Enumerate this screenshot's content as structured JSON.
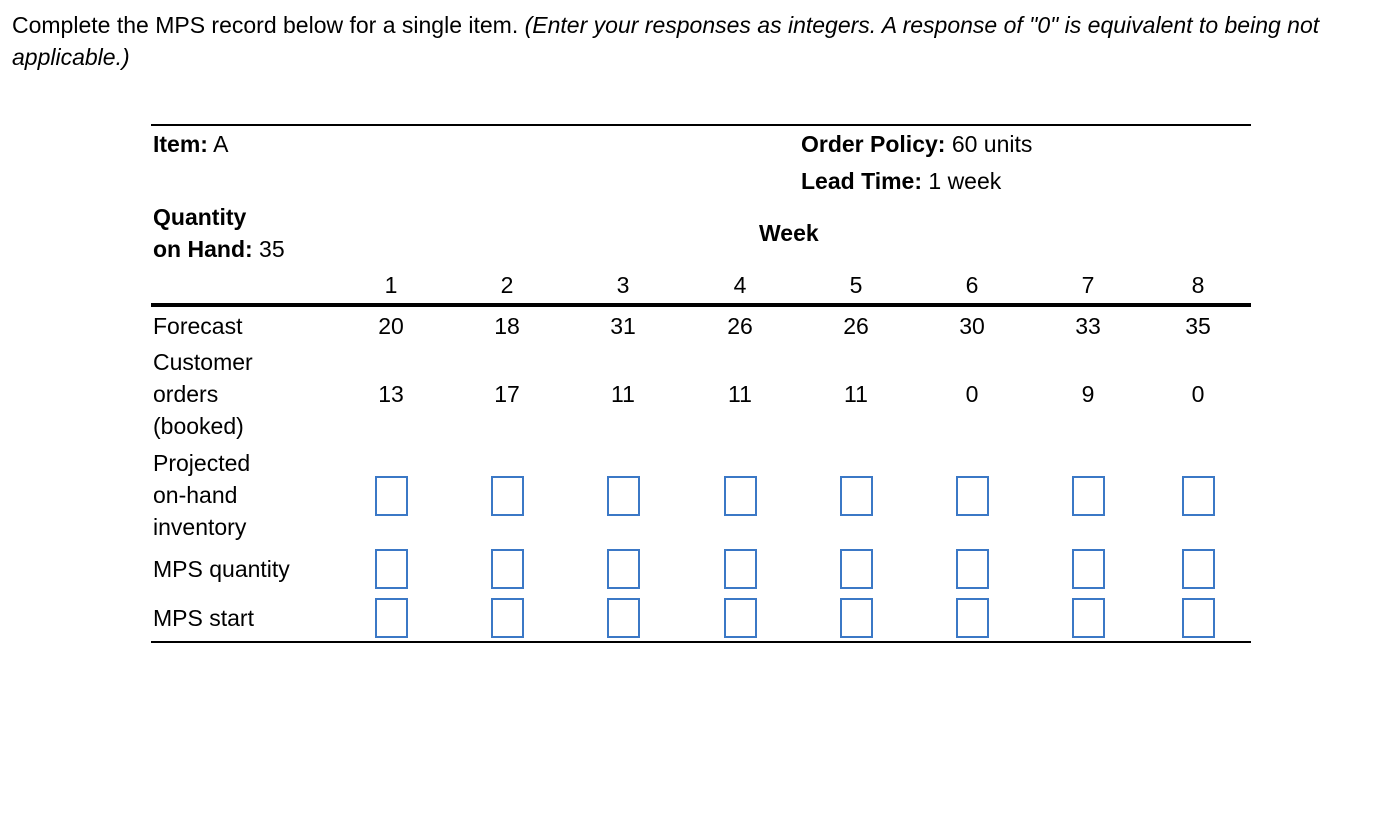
{
  "instructions": {
    "main": "Complete the MPS record below for a single item.",
    "note": "(Enter your responses as integers. A response of \"0\" is equivalent to being not applicable.)"
  },
  "record": {
    "item_label": "Item:",
    "item_value": "A",
    "order_policy_label": "Order Policy:",
    "order_policy_value": "60 units",
    "lead_time_label": "Lead Time:",
    "lead_time_value": "1 week",
    "qoh_label_line1": "Quantity",
    "qoh_label_line2": "on Hand:",
    "qoh_value": "35",
    "week_label": "Week",
    "weeks": [
      "1",
      "2",
      "3",
      "4",
      "5",
      "6",
      "7",
      "8"
    ],
    "rows": {
      "forecast": {
        "label": "Forecast",
        "values": [
          "20",
          "18",
          "31",
          "26",
          "26",
          "30",
          "33",
          "35"
        ]
      },
      "customer_orders": {
        "label_lines": [
          "Customer",
          "orders",
          "(booked)"
        ],
        "values": [
          "13",
          "17",
          "11",
          "11",
          "11",
          "0",
          "9",
          "0"
        ]
      },
      "projected_on_hand": {
        "label_lines": [
          "Projected",
          "on-hand",
          "inventory"
        ]
      },
      "mps_quantity": {
        "label": "MPS quantity"
      },
      "mps_start": {
        "label": "MPS start"
      }
    }
  }
}
